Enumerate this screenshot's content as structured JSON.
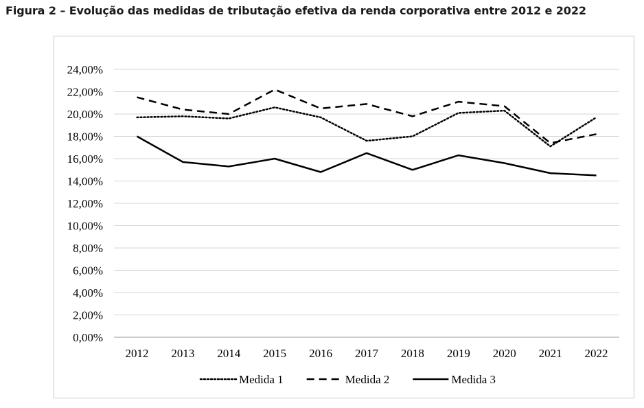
{
  "figure_title": "Figura 2 – Evolução das medidas de tributação efetiva da renda corporativa entre 2012 e 2022",
  "chart_data": {
    "type": "line",
    "title": "Figura 2 – Evolução das medidas de tributação efetiva da renda corporativa entre 2012 e 2022",
    "xlabel": "",
    "ylabel": "",
    "x": [
      "2012",
      "2013",
      "2014",
      "2015",
      "2016",
      "2017",
      "2018",
      "2019",
      "2020",
      "2021",
      "2022"
    ],
    "ylim": [
      0,
      24
    ],
    "yticks": [
      0,
      2,
      4,
      6,
      8,
      10,
      12,
      14,
      16,
      18,
      20,
      22,
      24
    ],
    "ytick_labels": [
      "0,00%",
      "2,00%",
      "4,00%",
      "6,00%",
      "8,00%",
      "10,00%",
      "12,00%",
      "14,00%",
      "16,00%",
      "18,00%",
      "20,00%",
      "22,00%",
      "24,00%"
    ],
    "grid": true,
    "legend_position": "bottom",
    "series": [
      {
        "name": "Medida 1",
        "style": "dotted",
        "color": "#000000",
        "values": [
          19.7,
          19.8,
          19.6,
          20.6,
          19.7,
          17.6,
          18.0,
          20.1,
          20.3,
          17.1,
          19.7
        ]
      },
      {
        "name": "Medida 2",
        "style": "dashed",
        "color": "#000000",
        "values": [
          21.5,
          20.4,
          20.0,
          22.2,
          20.5,
          20.9,
          19.8,
          21.1,
          20.7,
          17.4,
          18.2
        ]
      },
      {
        "name": "Medida 3",
        "style": "solid",
        "color": "#000000",
        "values": [
          18.0,
          15.7,
          15.3,
          16.0,
          14.8,
          16.5,
          15.0,
          16.3,
          15.6,
          14.7,
          14.5
        ]
      }
    ]
  }
}
